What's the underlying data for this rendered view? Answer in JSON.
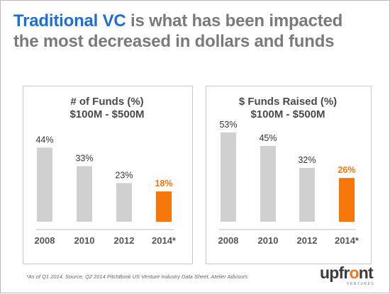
{
  "title": {
    "highlight": "Traditional VC",
    "rest_line1": " is what has been impacted",
    "line2": "the most decreased in dollars and funds"
  },
  "colors": {
    "highlight": "#1f6fd2",
    "bar_gray": "#d0d0d0",
    "bar_accent": "#f7760b",
    "accent_label": "#f7760b"
  },
  "chart_data": [
    {
      "type": "bar",
      "title_line1": "# of Funds (%)",
      "title_line2": "$100M - $500M",
      "categories": [
        "2008",
        "2010",
        "2012",
        "2014*"
      ],
      "values": [
        44,
        33,
        23,
        18
      ],
      "labels": [
        "44%",
        "33%",
        "23%",
        "18%"
      ],
      "highlight_index": 3,
      "ylim": [
        0,
        53
      ]
    },
    {
      "type": "bar",
      "title_line1": "$ Funds Raised (%)",
      "title_line2": "$100M - $500M",
      "categories": [
        "2008",
        "2010",
        "2012",
        "2014*"
      ],
      "values": [
        53,
        45,
        32,
        26
      ],
      "labels": [
        "53%",
        "45%",
        "32%",
        "26%"
      ],
      "highlight_index": 3,
      "ylim": [
        0,
        53
      ]
    }
  ],
  "footnote": "*As of Q1 2014.  Source; Q2 2014 PitchBook US Venture Industry Data Sheet, Atelier Advisors",
  "logo": {
    "pre": "upfr",
    "o": "o",
    "post": "nt",
    "sub": "VENTURES"
  }
}
